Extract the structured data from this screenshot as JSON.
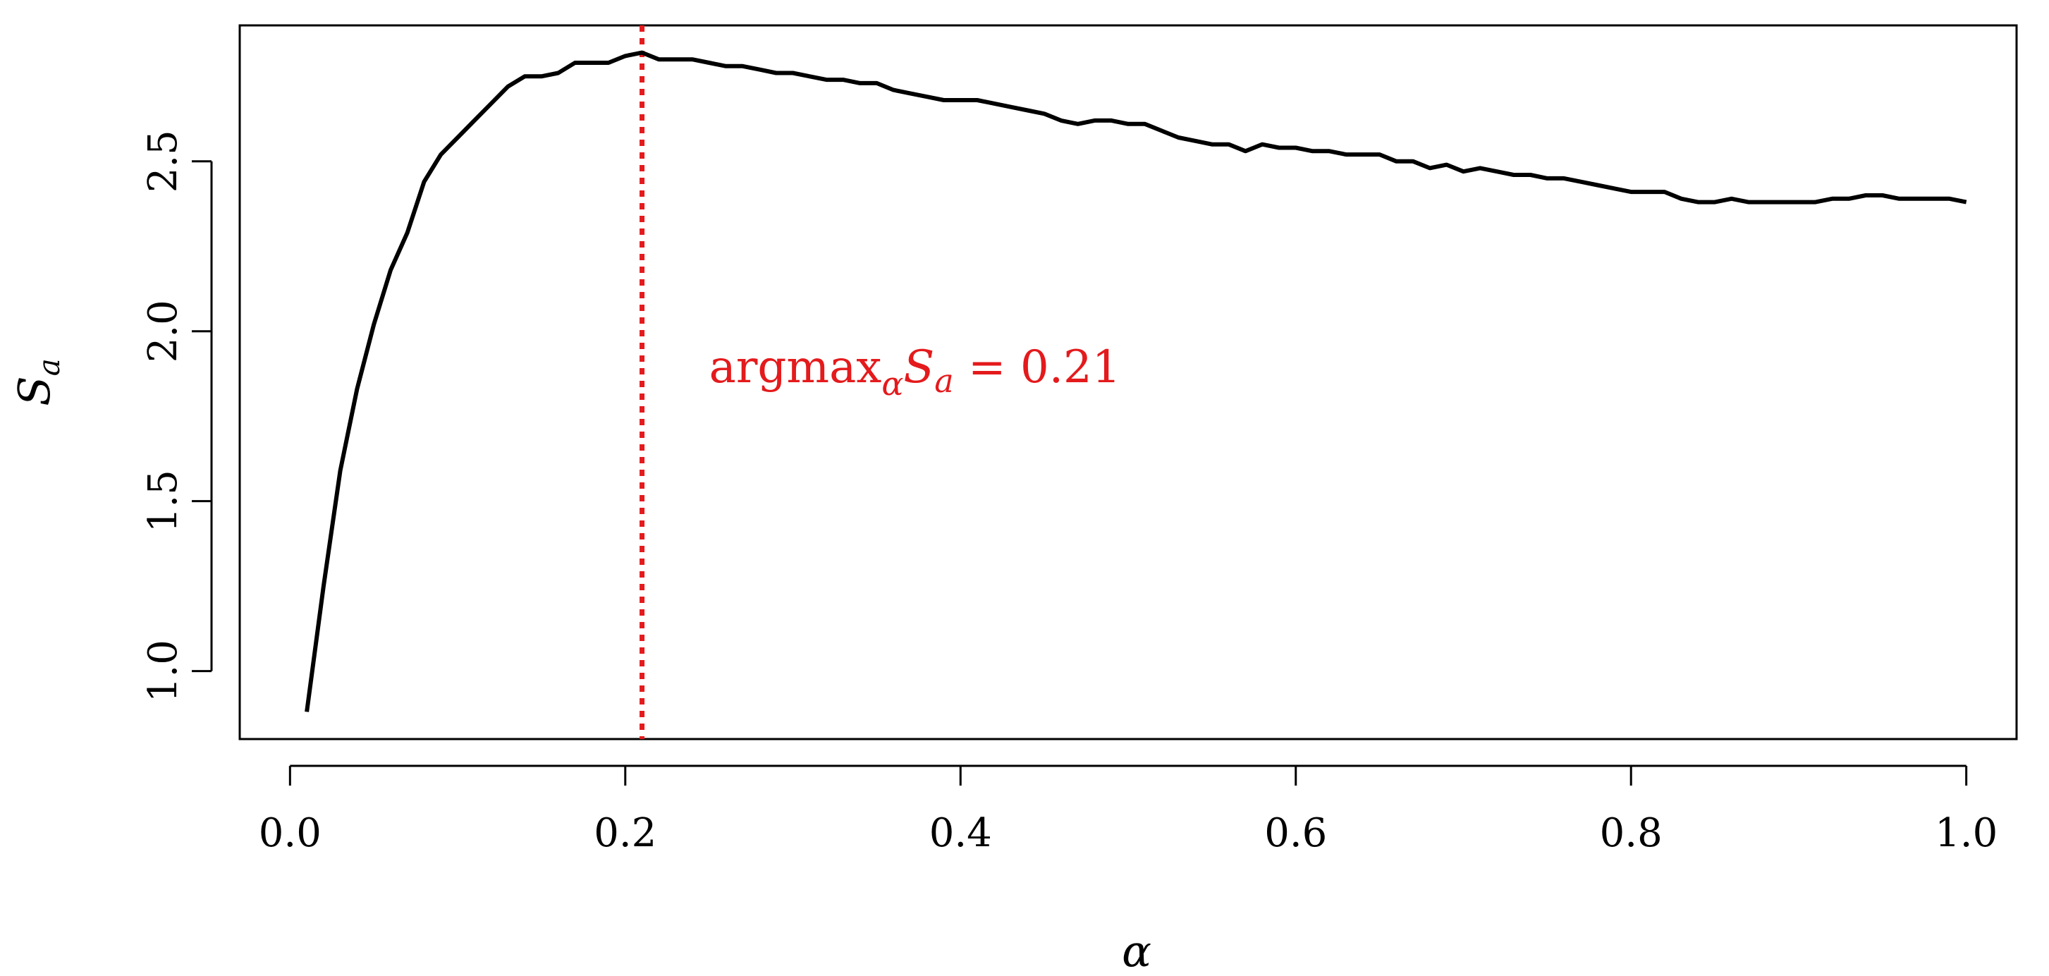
{
  "chart_data": {
    "type": "line",
    "xlabel": "α",
    "ylabel": "S",
    "ylabel_sub": "a",
    "xlim": [
      -0.03,
      1.03
    ],
    "ylim": [
      0.8,
      2.9
    ],
    "x_ticks": [
      "0.0",
      "0.2",
      "0.4",
      "0.6",
      "0.8",
      "1.0"
    ],
    "y_ticks": [
      "1.0",
      "1.5",
      "2.0",
      "2.5"
    ],
    "x_tick_values": [
      0.0,
      0.2,
      0.4,
      0.6,
      0.8,
      1.0
    ],
    "y_tick_values": [
      1.0,
      1.5,
      2.0,
      2.5
    ],
    "grid": false,
    "series": [
      {
        "color": "#000000",
        "x": [
          0.01,
          0.02,
          0.03,
          0.04,
          0.05,
          0.06,
          0.07,
          0.08,
          0.09,
          0.1,
          0.11,
          0.12,
          0.13,
          0.14,
          0.15,
          0.16,
          0.17,
          0.18,
          0.19,
          0.2,
          0.21,
          0.22,
          0.23,
          0.24,
          0.25,
          0.26,
          0.27,
          0.28,
          0.29,
          0.3,
          0.31,
          0.32,
          0.33,
          0.34,
          0.35,
          0.36,
          0.37,
          0.38,
          0.39,
          0.4,
          0.41,
          0.42,
          0.43,
          0.44,
          0.45,
          0.46,
          0.47,
          0.48,
          0.49,
          0.5,
          0.51,
          0.52,
          0.53,
          0.54,
          0.55,
          0.56,
          0.57,
          0.58,
          0.59,
          0.6,
          0.61,
          0.62,
          0.63,
          0.64,
          0.65,
          0.66,
          0.67,
          0.68,
          0.69,
          0.7,
          0.71,
          0.72,
          0.73,
          0.74,
          0.75,
          0.76,
          0.77,
          0.78,
          0.79,
          0.8,
          0.81,
          0.82,
          0.83,
          0.84,
          0.85,
          0.86,
          0.87,
          0.88,
          0.89,
          0.9,
          0.91,
          0.92,
          0.93,
          0.94,
          0.95,
          0.96,
          0.97,
          0.98,
          0.99,
          1.0
        ],
        "y": [
          0.88,
          1.25,
          1.59,
          1.83,
          2.02,
          2.18,
          2.29,
          2.44,
          2.52,
          2.57,
          2.62,
          2.67,
          2.72,
          2.75,
          2.75,
          2.76,
          2.79,
          2.79,
          2.79,
          2.81,
          2.82,
          2.8,
          2.8,
          2.8,
          2.79,
          2.78,
          2.78,
          2.77,
          2.76,
          2.76,
          2.75,
          2.74,
          2.74,
          2.73,
          2.73,
          2.71,
          2.7,
          2.69,
          2.68,
          2.68,
          2.68,
          2.67,
          2.66,
          2.65,
          2.64,
          2.62,
          2.61,
          2.62,
          2.62,
          2.61,
          2.61,
          2.59,
          2.57,
          2.56,
          2.55,
          2.55,
          2.53,
          2.55,
          2.54,
          2.54,
          2.53,
          2.53,
          2.52,
          2.52,
          2.52,
          2.5,
          2.5,
          2.48,
          2.49,
          2.47,
          2.48,
          2.47,
          2.46,
          2.46,
          2.45,
          2.45,
          2.44,
          2.43,
          2.42,
          2.41,
          2.41,
          2.41,
          2.39,
          2.38,
          2.38,
          2.39,
          2.38,
          2.38,
          2.38,
          2.38,
          2.38,
          2.39,
          2.39,
          2.4,
          2.4,
          2.39,
          2.39,
          2.39,
          2.39,
          2.38
        ]
      }
    ],
    "vline": {
      "x": 0.21,
      "color": "#e41a1c",
      "style": "dotted"
    },
    "annotation": {
      "text_main": "argmax",
      "sub": "α",
      "text_var": "S",
      "var_sub": "a",
      "text_rest": " = 0.21",
      "x": 0.25,
      "y": 1.85
    }
  }
}
